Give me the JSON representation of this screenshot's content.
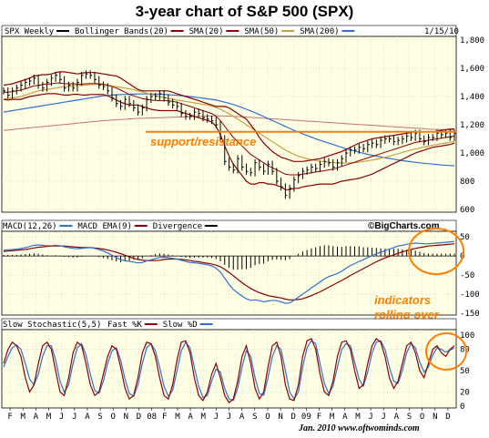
{
  "title": "3-year chart of S&P 500 (SPX)",
  "footer": "Jan. 2010  www.oftwominds.com",
  "watermark": "©BigCharts.com",
  "colors": {
    "panel_bg": "#ffffe6",
    "grid": "#c8c8a0",
    "price": "#000000",
    "bollinger": "#8b0000",
    "sma20": "#8b0000",
    "sma50": "#c8a040",
    "sma200": "#3070d0",
    "sma200_long": "#c87070",
    "annotation": "#ff7f00",
    "macd": "#3070d0",
    "macd_ema": "#8b0000",
    "divergence": "#000000",
    "stoch_fast": "#8b0000",
    "stoch_slow": "#3070d0"
  },
  "legends": {
    "price": [
      {
        "label": "SPX Weekly",
        "color": "#000000"
      },
      {
        "label": "Bollinger Bands(20)",
        "color": "#8b0000"
      },
      {
        "label": "SMA(20)",
        "color": "#8b0000"
      },
      {
        "label": "SMA(50)",
        "color": "#c8a040"
      },
      {
        "label": "SMA(200)",
        "color": "#3070d0"
      }
    ],
    "date": "1/15/10",
    "macd": [
      {
        "label": "MACD(12,26)",
        "color": "#3070d0"
      },
      {
        "label": "MACD EMA(9)",
        "color": "#8b0000"
      },
      {
        "label": "Divergence",
        "color": "#000000"
      }
    ],
    "stoch": [
      {
        "label": "Slow Stochastic(5,5)",
        "color": ""
      },
      {
        "label": "Fast %K",
        "color": "#8b0000"
      },
      {
        "label": "Slow %D",
        "color": "#3070d0"
      }
    ]
  },
  "annotations": {
    "support": "support/resistance",
    "indicators_line1": "indicators",
    "indicators_line2": "rolling over"
  },
  "chart_data": [
    {
      "type": "line",
      "name": "price",
      "ylim": [
        600,
        1800
      ],
      "yticks": [
        "1,800",
        "1,600",
        "1,400",
        "1,200",
        "1,000",
        "800",
        "600"
      ],
      "ytick_values": [
        1800,
        1600,
        1400,
        1200,
        1000,
        800,
        600
      ],
      "support_level": 1150,
      "x_month_labels": [
        "F",
        "M",
        "A",
        "M",
        "J",
        "J",
        "A",
        "S",
        "O",
        "N",
        "D",
        "08",
        "F",
        "M",
        "A",
        "M",
        "J",
        "J",
        "A",
        "S",
        "O",
        "N",
        "D",
        "09",
        "F",
        "M",
        "A",
        "M",
        "J",
        "J",
        "A",
        "S",
        "O",
        "N",
        "D"
      ],
      "close": [
        1440,
        1410,
        1440,
        1460,
        1480,
        1500,
        1510,
        1530,
        1480,
        1460,
        1500,
        1530,
        1550,
        1520,
        1460,
        1480,
        1460,
        1500,
        1550,
        1560,
        1550,
        1520,
        1480,
        1470,
        1440,
        1390,
        1350,
        1330,
        1380,
        1350,
        1320,
        1290,
        1320,
        1380,
        1400,
        1400,
        1420,
        1390,
        1360,
        1340,
        1330,
        1280,
        1260,
        1260,
        1290,
        1280,
        1250,
        1240,
        1230,
        1200,
        1100,
        940,
        900,
        880,
        960,
        900,
        870,
        860,
        930,
        900,
        870,
        920,
        870,
        800,
        760,
        700,
        750,
        810,
        840,
        870,
        880,
        900,
        890,
        920,
        940,
        930,
        900,
        930,
        960,
        1000,
        1020,
        1020,
        1040,
        1030,
        1060,
        1070,
        1060,
        1090,
        1100,
        1100,
        1080,
        1090,
        1100,
        1120,
        1110,
        1140,
        1100,
        1080,
        1110,
        1110,
        1140,
        1130,
        1140,
        1110,
        1140
      ],
      "sma20": [
        1430,
        1430,
        1435,
        1440,
        1445,
        1455,
        1465,
        1475,
        1480,
        1485,
        1488,
        1490,
        1495,
        1495,
        1492,
        1490,
        1490,
        1488,
        1488,
        1490,
        1492,
        1492,
        1490,
        1487,
        1480,
        1470,
        1460,
        1445,
        1430,
        1415,
        1405,
        1395,
        1385,
        1380,
        1375,
        1372,
        1370,
        1370,
        1370,
        1365,
        1360,
        1350,
        1340,
        1330,
        1320,
        1310,
        1300,
        1290,
        1280,
        1260,
        1230,
        1190,
        1150,
        1110,
        1080,
        1050,
        1020,
        990,
        970,
        950,
        930,
        910,
        895,
        880,
        865,
        850,
        845,
        845,
        845,
        850,
        855,
        860,
        865,
        870,
        875,
        880,
        885,
        895,
        905,
        915,
        925,
        935,
        945,
        955,
        965,
        975,
        985,
        995,
        1005,
        1015,
        1025,
        1035,
        1045,
        1055,
        1065,
        1075,
        1080,
        1085,
        1090,
        1095,
        1100,
        1105,
        1110,
        1115,
        1120
      ],
      "bb_upper": [
        1480,
        1485,
        1490,
        1500,
        1510,
        1520,
        1530,
        1545,
        1550,
        1555,
        1555,
        1560,
        1570,
        1575,
        1575,
        1570,
        1565,
        1560,
        1565,
        1570,
        1570,
        1570,
        1565,
        1560,
        1555,
        1550,
        1545,
        1530,
        1510,
        1490,
        1470,
        1450,
        1440,
        1440,
        1440,
        1440,
        1440,
        1440,
        1440,
        1430,
        1420,
        1410,
        1400,
        1390,
        1380,
        1370,
        1360,
        1350,
        1340,
        1330,
        1330,
        1330,
        1320,
        1300,
        1280,
        1260,
        1240,
        1200,
        1160,
        1110,
        1070,
        1040,
        1010,
        990,
        970,
        960,
        950,
        940,
        940,
        940,
        945,
        950,
        955,
        960,
        970,
        980,
        990,
        1000,
        1010,
        1025,
        1040,
        1055,
        1070,
        1080,
        1090,
        1100,
        1105,
        1110,
        1115,
        1120,
        1125,
        1130,
        1135,
        1140,
        1145,
        1150,
        1150,
        1150,
        1150,
        1150,
        1155,
        1160,
        1165,
        1170,
        1170
      ],
      "bb_lower": [
        1380,
        1375,
        1380,
        1380,
        1380,
        1390,
        1400,
        1405,
        1410,
        1415,
        1420,
        1420,
        1420,
        1415,
        1410,
        1410,
        1415,
        1416,
        1411,
        1410,
        1414,
        1414,
        1415,
        1414,
        1405,
        1390,
        1375,
        1360,
        1350,
        1340,
        1340,
        1340,
        1330,
        1320,
        1310,
        1304,
        1300,
        1300,
        1300,
        1300,
        1300,
        1290,
        1280,
        1270,
        1260,
        1250,
        1240,
        1230,
        1220,
        1190,
        1130,
        1050,
        980,
        920,
        880,
        840,
        800,
        780,
        780,
        790,
        790,
        780,
        780,
        770,
        760,
        740,
        740,
        750,
        750,
        760,
        765,
        770,
        775,
        780,
        780,
        780,
        780,
        790,
        800,
        805,
        810,
        815,
        820,
        830,
        840,
        850,
        865,
        880,
        895,
        910,
        925,
        940,
        955,
        970,
        985,
        1000,
        1010,
        1020,
        1030,
        1040,
        1045,
        1050,
        1055,
        1060,
        1070
      ],
      "sma50": [
        1380,
        1385,
        1390,
        1395,
        1400,
        1410,
        1420,
        1430,
        1440,
        1445,
        1450,
        1455,
        1460,
        1465,
        1470,
        1472,
        1475,
        1478,
        1480,
        1482,
        1484,
        1485,
        1485,
        1483,
        1480,
        1476,
        1470,
        1465,
        1460,
        1455,
        1448,
        1440,
        1432,
        1424,
        1416,
        1408,
        1400,
        1393,
        1386,
        1380,
        1375,
        1370,
        1365,
        1360,
        1355,
        1350,
        1345,
        1340,
        1332,
        1322,
        1310,
        1295,
        1278,
        1260,
        1240,
        1220,
        1200,
        1180,
        1160,
        1140,
        1120,
        1100,
        1080,
        1060,
        1040,
        1020,
        1005,
        990,
        978,
        968,
        960,
        953,
        947,
        942,
        938,
        935,
        932,
        930,
        929,
        929,
        930,
        932,
        935,
        940,
        945,
        950,
        955,
        962,
        970,
        978,
        986,
        995,
        1004,
        1012,
        1020,
        1028,
        1035,
        1042,
        1048,
        1054,
        1060,
        1066,
        1071,
        1076,
        1080
      ],
      "sma200": [
        1290,
        1295,
        1300,
        1305,
        1310,
        1315,
        1320,
        1325,
        1330,
        1335,
        1340,
        1345,
        1350,
        1355,
        1360,
        1365,
        1370,
        1375,
        1380,
        1385,
        1390,
        1395,
        1400,
        1405,
        1408,
        1410,
        1412,
        1414,
        1415,
        1416,
        1417,
        1418,
        1418,
        1418,
        1418,
        1417,
        1416,
        1415,
        1413,
        1411,
        1409,
        1406,
        1403,
        1400,
        1396,
        1392,
        1388,
        1384,
        1380,
        1375,
        1368,
        1360,
        1352,
        1343,
        1333,
        1322,
        1310,
        1298,
        1285,
        1272,
        1258,
        1244,
        1230,
        1216,
        1202,
        1188,
        1174,
        1160,
        1148,
        1136,
        1124,
        1112,
        1100,
        1090,
        1080,
        1070,
        1060,
        1050,
        1040,
        1030,
        1022,
        1014,
        1006,
        998,
        990,
        984,
        978,
        972,
        966,
        961,
        956,
        951,
        946,
        942,
        938,
        934,
        930,
        927,
        924,
        921,
        918,
        915,
        913,
        911,
        910
      ],
      "sma200_long": [
        1160,
        1163,
        1166,
        1169,
        1172,
        1175,
        1178,
        1181,
        1184,
        1187,
        1190,
        1193,
        1196,
        1199,
        1202,
        1205,
        1208,
        1211,
        1214,
        1217,
        1220,
        1223,
        1226,
        1229,
        1231,
        1233,
        1235,
        1237,
        1239,
        1241,
        1243,
        1245,
        1246,
        1247,
        1248,
        1249,
        1250,
        1251,
        1252,
        1253,
        1254,
        1255,
        1256,
        1257,
        1258,
        1259,
        1260,
        1261,
        1262,
        1263,
        1263,
        1262,
        1261,
        1260,
        1258,
        1256,
        1254,
        1252,
        1250,
        1248,
        1246,
        1244,
        1242,
        1240,
        1238,
        1236,
        1234,
        1232,
        1230,
        1228,
        1226,
        1224,
        1222,
        1220,
        1218,
        1216,
        1214,
        1212,
        1210,
        1208,
        1206,
        1204,
        1202,
        1200,
        1198,
        1196,
        1194,
        1192,
        1190,
        1188,
        1186,
        1184,
        1182,
        1180,
        1178,
        1176,
        1174,
        1172,
        1170,
        1168,
        1167,
        1166,
        1165,
        1164,
        1163
      ]
    },
    {
      "type": "line",
      "name": "macd",
      "ylim": [
        -150,
        60
      ],
      "yticks": [
        "50",
        "0",
        "-50",
        "-100",
        "-150"
      ],
      "ytick_values": [
        50,
        0,
        -50,
        -100,
        -150
      ],
      "macd": [
        15,
        16,
        17,
        18,
        20,
        22,
        25,
        28,
        29,
        28,
        27,
        27,
        28,
        27,
        24,
        22,
        20,
        19,
        20,
        21,
        22,
        20,
        17,
        13,
        8,
        2,
        -4,
        -10,
        -12,
        -14,
        -16,
        -18,
        -17,
        -13,
        -10,
        -7,
        -4,
        -3,
        -4,
        -6,
        -8,
        -11,
        -14,
        -17,
        -18,
        -19,
        -21,
        -23,
        -26,
        -32,
        -42,
        -58,
        -74,
        -88,
        -97,
        -105,
        -112,
        -116,
        -115,
        -117,
        -120,
        -118,
        -116,
        -117,
        -120,
        -124,
        -123,
        -116,
        -108,
        -100,
        -92,
        -84,
        -76,
        -68,
        -60,
        -54,
        -50,
        -46,
        -40,
        -32,
        -25,
        -20,
        -14,
        -10,
        -4,
        1,
        6,
        10,
        14,
        18,
        22,
        26,
        28,
        31,
        32,
        34,
        33,
        32,
        32,
        33,
        34,
        35,
        36,
        37,
        38
      ],
      "macd_ema": [
        12,
        13,
        14,
        15,
        16,
        17,
        19,
        21,
        23,
        24,
        25,
        26,
        26,
        26,
        26,
        25,
        24,
        23,
        22,
        22,
        22,
        21,
        20,
        18,
        16,
        13,
        10,
        6,
        2,
        -2,
        -6,
        -9,
        -11,
        -12,
        -12,
        -12,
        -11,
        -9,
        -8,
        -8,
        -8,
        -9,
        -10,
        -12,
        -14,
        -15,
        -17,
        -19,
        -21,
        -24,
        -28,
        -35,
        -43,
        -52,
        -61,
        -70,
        -78,
        -85,
        -91,
        -96,
        -100,
        -104,
        -106,
        -108,
        -110,
        -113,
        -115,
        -115,
        -114,
        -112,
        -108,
        -104,
        -99,
        -94,
        -88,
        -82,
        -76,
        -70,
        -64,
        -58,
        -51,
        -45,
        -39,
        -33,
        -27,
        -21,
        -15,
        -10,
        -5,
        -1,
        3,
        7,
        11,
        14,
        17,
        20,
        22,
        24,
        26,
        27,
        28,
        29,
        30,
        31,
        32
      ],
      "divergence": [
        3,
        3,
        3,
        3,
        4,
        5,
        6,
        7,
        6,
        4,
        2,
        1,
        2,
        1,
        -2,
        -3,
        -4,
        -4,
        -2,
        -1,
        0,
        -1,
        -3,
        -5,
        -8,
        -11,
        -14,
        -16,
        -14,
        -12,
        -10,
        -9,
        -6,
        -1,
        2,
        5,
        7,
        6,
        4,
        2,
        0,
        -2,
        -4,
        -5,
        -4,
        -4,
        -4,
        -4,
        -5,
        -8,
        -14,
        -23,
        -31,
        -36,
        -36,
        -35,
        -34,
        -31,
        -24,
        -21,
        -20,
        -14,
        -10,
        -9,
        -10,
        -11,
        -8,
        -1,
        6,
        12,
        16,
        20,
        23,
        26,
        28,
        28,
        26,
        24,
        24,
        26,
        26,
        25,
        25,
        23,
        23,
        22,
        21,
        20,
        19,
        19,
        19,
        19,
        17,
        17,
        15,
        14,
        11,
        8,
        6,
        6,
        6,
        6,
        6,
        6,
        6
      ]
    },
    {
      "type": "line",
      "name": "stochastic",
      "ylim": [
        0,
        100
      ],
      "yticks": [
        "100",
        "80",
        "50",
        "20",
        "0"
      ],
      "ytick_values": [
        100,
        80,
        50,
        20,
        0
      ],
      "fast_k": [
        60,
        80,
        90,
        85,
        70,
        40,
        20,
        30,
        60,
        85,
        90,
        80,
        50,
        20,
        15,
        40,
        75,
        90,
        85,
        60,
        30,
        15,
        20,
        45,
        70,
        85,
        80,
        55,
        25,
        10,
        15,
        40,
        75,
        90,
        88,
        70,
        40,
        15,
        10,
        30,
        65,
        90,
        92,
        75,
        40,
        15,
        8,
        20,
        45,
        60,
        40,
        15,
        5,
        10,
        35,
        70,
        85,
        60,
        25,
        10,
        20,
        55,
        85,
        90,
        70,
        30,
        10,
        8,
        30,
        70,
        92,
        95,
        80,
        45,
        20,
        15,
        35,
        70,
        90,
        92,
        80,
        50,
        25,
        30,
        60,
        85,
        95,
        90,
        70,
        40,
        25,
        35,
        60,
        85,
        90,
        75,
        50,
        40,
        60,
        80,
        85,
        75,
        70,
        80,
        85
      ],
      "slow_d": [
        55,
        70,
        82,
        86,
        80,
        60,
        38,
        30,
        45,
        70,
        85,
        85,
        65,
        35,
        20,
        30,
        60,
        82,
        88,
        72,
        45,
        22,
        18,
        35,
        60,
        78,
        82,
        65,
        38,
        18,
        14,
        30,
        60,
        82,
        88,
        78,
        55,
        28,
        14,
        22,
        50,
        78,
        90,
        82,
        55,
        28,
        12,
        15,
        35,
        52,
        48,
        25,
        10,
        8,
        25,
        55,
        78,
        70,
        40,
        18,
        15,
        40,
        70,
        85,
        80,
        50,
        20,
        10,
        20,
        55,
        82,
        92,
        88,
        60,
        32,
        18,
        28,
        55,
        80,
        88,
        85,
        62,
        38,
        28,
        48,
        75,
        90,
        92,
        80,
        55,
        35,
        32,
        50,
        75,
        88,
        82,
        62,
        48,
        55,
        72,
        82,
        80,
        76,
        79,
        82
      ]
    }
  ]
}
